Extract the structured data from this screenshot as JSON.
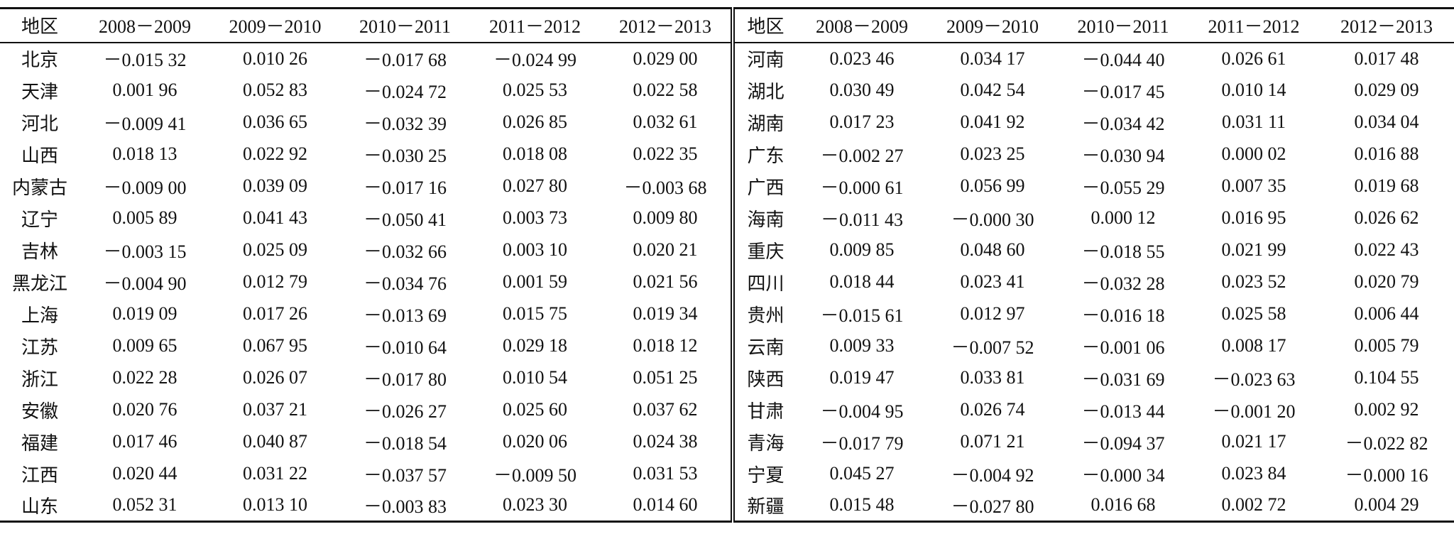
{
  "table": {
    "header": [
      "地区",
      "2008－2009",
      "2009－2010",
      "2010－2011",
      "2011－2012",
      "2012－2013",
      "地区",
      "2008－2009",
      "2009－2010",
      "2010－2011",
      "2011－2012",
      "2012－2013"
    ],
    "rows": [
      [
        "北京",
        "－0.015 32",
        "0.010 26",
        "－0.017 68",
        "－0.024 99",
        "0.029 00",
        "河南",
        "0.023 46",
        "0.034 17",
        "－0.044 40",
        "0.026 61",
        "0.017 48"
      ],
      [
        "天津",
        "0.001 96",
        "0.052 83",
        "－0.024 72",
        "0.025 53",
        "0.022 58",
        "湖北",
        "0.030 49",
        "0.042 54",
        "－0.017 45",
        "0.010 14",
        "0.029 09"
      ],
      [
        "河北",
        "－0.009 41",
        "0.036 65",
        "－0.032 39",
        "0.026 85",
        "0.032 61",
        "湖南",
        "0.017 23",
        "0.041 92",
        "－0.034 42",
        "0.031 11",
        "0.034 04"
      ],
      [
        "山西",
        "0.018 13",
        "0.022 92",
        "－0.030 25",
        "0.018 08",
        "0.022 35",
        "广东",
        "－0.002 27",
        "0.023 25",
        "－0.030 94",
        "0.000 02",
        "0.016 88"
      ],
      [
        "内蒙古",
        "－0.009 00",
        "0.039 09",
        "－0.017 16",
        "0.027 80",
        "－0.003 68",
        "广西",
        "－0.000 61",
        "0.056 99",
        "－0.055 29",
        "0.007 35",
        "0.019 68"
      ],
      [
        "辽宁",
        "0.005 89",
        "0.041 43",
        "－0.050 41",
        "0.003 73",
        "0.009 80",
        "海南",
        "－0.011 43",
        "－0.000 30",
        "0.000 12",
        "0.016 95",
        "0.026 62"
      ],
      [
        "吉林",
        "－0.003 15",
        "0.025 09",
        "－0.032 66",
        "0.003 10",
        "0.020 21",
        "重庆",
        "0.009 85",
        "0.048 60",
        "－0.018 55",
        "0.021 99",
        "0.022 43"
      ],
      [
        "黑龙江",
        "－0.004 90",
        "0.012 79",
        "－0.034 76",
        "0.001 59",
        "0.021 56",
        "四川",
        "0.018 44",
        "0.023 41",
        "－0.032 28",
        "0.023 52",
        "0.020 79"
      ],
      [
        "上海",
        "0.019 09",
        "0.017 26",
        "－0.013 69",
        "0.015 75",
        "0.019 34",
        "贵州",
        "－0.015 61",
        "0.012 97",
        "－0.016 18",
        "0.025 58",
        "0.006 44"
      ],
      [
        "江苏",
        "0.009 65",
        "0.067 95",
        "－0.010 64",
        "0.029 18",
        "0.018 12",
        "云南",
        "0.009 33",
        "－0.007 52",
        "－0.001 06",
        "0.008 17",
        "0.005 79"
      ],
      [
        "浙江",
        "0.022 28",
        "0.026 07",
        "－0.017 80",
        "0.010 54",
        "0.051 25",
        "陕西",
        "0.019 47",
        "0.033 81",
        "－0.031 69",
        "－0.023 63",
        "0.104 55"
      ],
      [
        "安徽",
        "0.020 76",
        "0.037 21",
        "－0.026 27",
        "0.025 60",
        "0.037 62",
        "甘肃",
        "－0.004 95",
        "0.026 74",
        "－0.013 44",
        "－0.001 20",
        "0.002 92"
      ],
      [
        "福建",
        "0.017 46",
        "0.040 87",
        "－0.018 54",
        "0.020 06",
        "0.024 38",
        "青海",
        "－0.017 79",
        "0.071 21",
        "－0.094 37",
        "0.021 17",
        "－0.022 82"
      ],
      [
        "江西",
        "0.020 44",
        "0.031 22",
        "－0.037 57",
        "－0.009 50",
        "0.031 53",
        "宁夏",
        "0.045 27",
        "－0.004 92",
        "－0.000 34",
        "0.023 84",
        "－0.000 16"
      ],
      [
        "山东",
        "0.052 31",
        "0.013 10",
        "－0.003 83",
        "0.023 30",
        "0.014 60",
        "新疆",
        "0.015 48",
        "－0.027 80",
        "0.016 68",
        "0.002 72",
        "0.004 29"
      ]
    ]
  }
}
